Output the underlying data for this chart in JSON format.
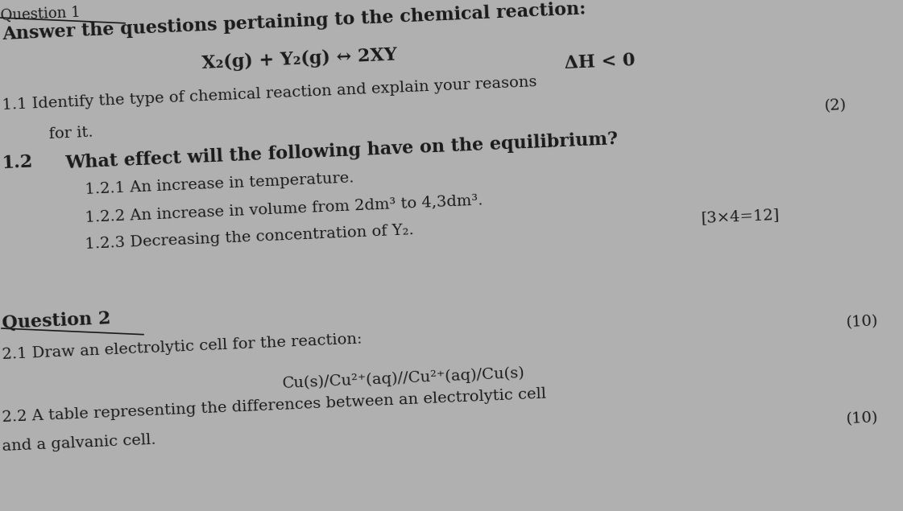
{
  "background_color": "#b0b0b0",
  "text_color": "#1a1a1a",
  "title_top": "Question 1",
  "line1": "Answer the questions pertaining to the chemical reaction:",
  "line2a": "X₂(g) + Y₂(g) ↔ 2XY",
  "line2b": "ΔH < 0",
  "line3": "1.1 Identify the type of chemical reaction and explain your reasons",
  "line3_right": "(2)",
  "line4": "    for it.",
  "line5a": "1.2",
  "line5b": "What effect will the following have on the equilibrium?",
  "line6": "    1.2.1 An increase in temperature.",
  "line7": "    1.2.2 An increase in volume from 2dm³ to 4,3dm³.",
  "line7_right": "[3×4=12]",
  "line8": "    1.2.3 Decreasing the concentration of Y₂.",
  "q2_label": "Question 2",
  "q2_marks": "(10)",
  "q2_1": "2.1 Draw an electrolytic cell for the reaction:",
  "q2_1_center": "Cu(s)/Cu²⁺(aq)//Cu²⁺(aq)/Cu(s)",
  "q2_2": "2.2 A table representing the differences between an electrolytic cell",
  "q2_2_marks": "(10)",
  "q2_2b": "and a galvanic cell.",
  "rotation": 2.5,
  "font_size_large": 16,
  "font_size_medium": 14,
  "font_size_small": 13
}
